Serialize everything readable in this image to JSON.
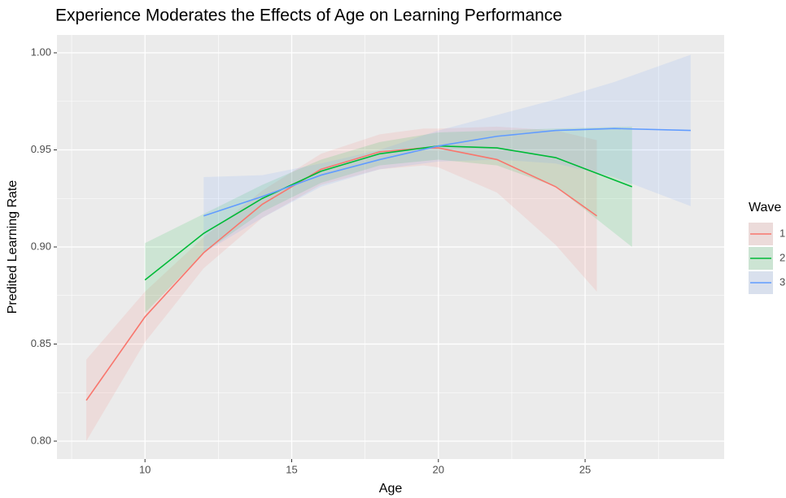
{
  "chart_data": {
    "type": "line",
    "title": "Experience Moderates the Effects of Age on Learning Performance",
    "x_label": "Age",
    "y_label": "Predited Learning Rate",
    "legend_title": "Wave",
    "legend_position": "right",
    "grid": true,
    "xlim": [
      7.0,
      29.74
    ],
    "xticks": [
      10,
      15,
      20,
      25
    ],
    "ylim": [
      0.7908,
      1.0092
    ],
    "yticks": [
      {
        "value": 0.8,
        "label": "0.80"
      },
      0.85,
      {
        "value": 0.9,
        "label": "0.90"
      },
      0.95,
      {
        "value": 1,
        "label": "1.00"
      }
    ],
    "series": [
      {
        "name": "1",
        "color": "#F8766D",
        "x": [
          8,
          10,
          12,
          14,
          16,
          18,
          19.5,
          20,
          22,
          24,
          25.4
        ],
        "values": [
          0.821,
          0.864,
          0.897,
          0.922,
          0.94,
          0.949,
          0.951,
          0.951,
          0.945,
          0.931,
          0.916
        ],
        "lower": [
          0.8,
          0.851,
          0.889,
          0.915,
          0.932,
          0.94,
          0.942,
          0.941,
          0.928,
          0.901,
          0.877
        ],
        "upper": [
          0.842,
          0.877,
          0.905,
          0.929,
          0.948,
          0.958,
          0.961,
          0.961,
          0.962,
          0.96,
          0.955
        ]
      },
      {
        "name": "2",
        "color": "#00BA38",
        "x": [
          10,
          12,
          14,
          16,
          18,
          20,
          22,
          24,
          26.6
        ],
        "values": [
          0.883,
          0.907,
          0.925,
          0.939,
          0.948,
          0.952,
          0.951,
          0.946,
          0.931
        ],
        "lower": [
          0.866,
          0.897,
          0.918,
          0.933,
          0.942,
          0.945,
          0.942,
          0.931,
          0.9
        ],
        "upper": [
          0.902,
          0.917,
          0.932,
          0.945,
          0.954,
          0.959,
          0.96,
          0.961,
          0.962
        ]
      },
      {
        "name": "3",
        "color": "#619CFF",
        "x": [
          12,
          14,
          16,
          18,
          20,
          22,
          24,
          26,
          28.6
        ],
        "values": [
          0.916,
          0.926,
          0.937,
          0.945,
          0.952,
          0.957,
          0.96,
          0.961,
          0.96
        ],
        "lower": [
          0.897,
          0.915,
          0.931,
          0.94,
          0.944,
          0.945,
          0.943,
          0.936,
          0.921
        ],
        "upper": [
          0.936,
          0.937,
          0.943,
          0.95,
          0.96,
          0.968,
          0.976,
          0.985,
          0.999
        ]
      }
    ]
  }
}
